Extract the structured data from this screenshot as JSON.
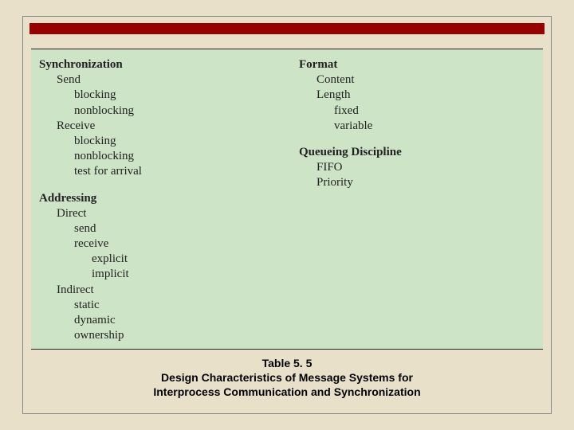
{
  "colors": {
    "page_bg": "#e8e0c8",
    "frame_border": "#888888",
    "red_bar": "#990000",
    "table_bg": "#cde5c6",
    "table_border": "#222222",
    "text": "#222222",
    "caption_text": "#000000"
  },
  "left": {
    "h1": "Synchronization",
    "s1": "Send",
    "s1a": "blocking",
    "s1b": "nonblocking",
    "s2": "Receive",
    "s2a": "blocking",
    "s2b": "nonblocking",
    "s2c": "test for arrival",
    "h2": "Addressing",
    "a1": "Direct",
    "a1a": "send",
    "a1b": "receive",
    "a1b1": "explicit",
    "a1b2": "implicit",
    "a2": "Indirect",
    "a2a": "static",
    "a2b": "dynamic",
    "a2c": "ownership"
  },
  "right": {
    "h1": "Format",
    "f1": "Content",
    "f2": "Length",
    "f2a": "fixed",
    "f2b": "variable",
    "h2": "Queueing Discipline",
    "q1": "FIFO",
    "q2": "Priority"
  },
  "caption": {
    "line1": "Table 5. 5",
    "line2": "Design Characteristics of Message Systems for",
    "line3": "Interprocess Communication and Synchronization"
  }
}
